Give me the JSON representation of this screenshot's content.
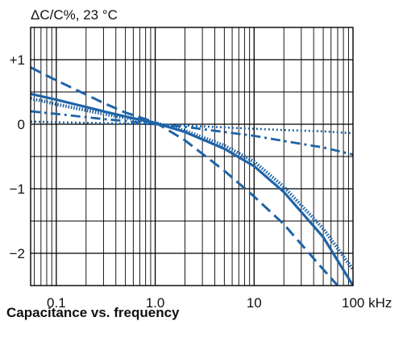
{
  "chart_data": {
    "type": "line",
    "title": "Capacitance vs. frequency",
    "ylabel": "ΔC/C%, 23 °C",
    "xlabel": "kHz",
    "x_scale": "log",
    "xlim": [
      0.055,
      100
    ],
    "ylim": [
      -2.5,
      1.5
    ],
    "x_ticks": [
      {
        "value": 0.1,
        "label": "0.1"
      },
      {
        "value": 1,
        "label": "1.0"
      },
      {
        "value": 10,
        "label": "10"
      },
      {
        "value": 100,
        "label": "100 kHz"
      }
    ],
    "y_ticks": [
      {
        "value": 1,
        "label": "+1"
      },
      {
        "value": 0,
        "label": "0"
      },
      {
        "value": -1,
        "label": "−1"
      },
      {
        "value": -2,
        "label": "−2"
      }
    ],
    "grid": true,
    "line_color": "#1f64a8",
    "series": [
      {
        "style": "solid",
        "points": [
          [
            0.055,
            0.47
          ],
          [
            0.1,
            0.38
          ],
          [
            0.3,
            0.2
          ],
          [
            0.5,
            0.12
          ],
          [
            1,
            0.02
          ],
          [
            2,
            -0.12
          ],
          [
            5,
            -0.38
          ],
          [
            10,
            -0.65
          ],
          [
            20,
            -1.05
          ],
          [
            50,
            -1.75
          ],
          [
            100,
            -2.5
          ]
        ]
      },
      {
        "style": "dotted",
        "points": [
          [
            0.055,
            0.4
          ],
          [
            0.1,
            0.31
          ],
          [
            0.3,
            0.16
          ],
          [
            0.5,
            0.1
          ],
          [
            1,
            0.02
          ],
          [
            2,
            -0.1
          ],
          [
            5,
            -0.33
          ],
          [
            10,
            -0.58
          ],
          [
            20,
            -0.97
          ],
          [
            50,
            -1.62
          ],
          [
            100,
            -2.25
          ]
        ]
      },
      {
        "style": "dashed",
        "points": [
          [
            0.055,
            0.88
          ],
          [
            0.1,
            0.68
          ],
          [
            0.3,
            0.33
          ],
          [
            0.5,
            0.18
          ],
          [
            1,
            0.03
          ],
          [
            2,
            -0.25
          ],
          [
            5,
            -0.72
          ],
          [
            10,
            -1.12
          ],
          [
            20,
            -1.55
          ],
          [
            50,
            -2.25
          ],
          [
            70,
            -2.5
          ]
        ]
      },
      {
        "style": "dash-dot",
        "points": [
          [
            0.055,
            0.2
          ],
          [
            0.1,
            0.16
          ],
          [
            0.3,
            0.08
          ],
          [
            0.5,
            0.05
          ],
          [
            1,
            0.0
          ],
          [
            2,
            -0.04
          ],
          [
            5,
            -0.12
          ],
          [
            10,
            -0.18
          ],
          [
            20,
            -0.26
          ],
          [
            50,
            -0.36
          ],
          [
            100,
            -0.47
          ]
        ]
      },
      {
        "style": "fine-dotted",
        "points": [
          [
            0.055,
            0.04
          ],
          [
            0.1,
            0.03
          ],
          [
            0.5,
            0.01
          ],
          [
            1,
            0.0
          ],
          [
            2,
            -0.02
          ],
          [
            5,
            -0.05
          ],
          [
            10,
            -0.07
          ],
          [
            20,
            -0.09
          ],
          [
            50,
            -0.11
          ],
          [
            100,
            -0.14
          ]
        ]
      }
    ]
  }
}
